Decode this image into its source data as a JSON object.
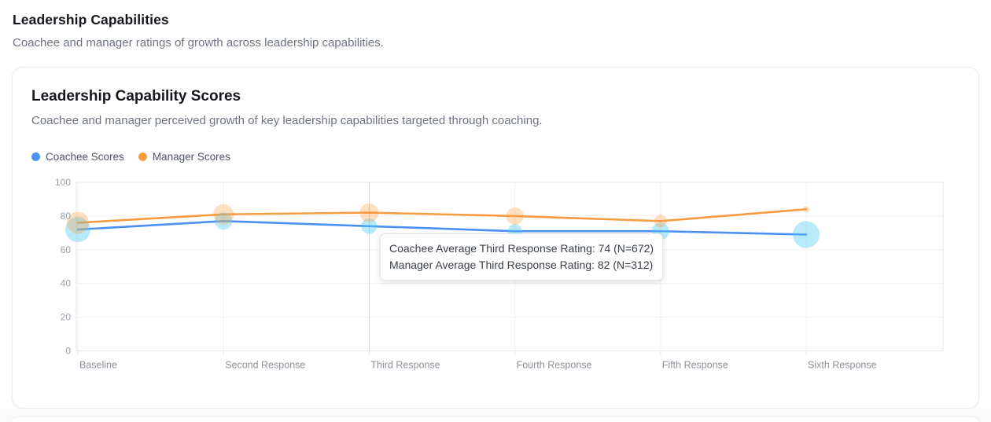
{
  "page": {
    "title": "Leadership Capabilities",
    "subtitle": "Coachee and manager ratings of growth across leadership capabilities."
  },
  "card": {
    "title": "Leadership Capability Scores",
    "subtitle": "Coachee and manager perceived growth of key leadership capabilities targeted through coaching."
  },
  "legend": [
    {
      "label": "Coachee Scores",
      "color": "#4B90F2"
    },
    {
      "label": "Manager Scores",
      "color": "#F89C42"
    }
  ],
  "tooltip": {
    "lines": [
      "Coachee Average Third Response Rating: 74 (N=672)",
      "Manager Average Third Response Rating: 82 (N=312)"
    ]
  },
  "chart_data": {
    "type": "line",
    "title": "Leadership Capability Scores",
    "categories": [
      "Baseline",
      "Second Response",
      "Third Response",
      "Fourth Response",
      "Fifth Response",
      "Sixth Response"
    ],
    "series": [
      {
        "name": "Coachee Scores",
        "values": [
          72,
          77,
          74,
          71,
          71,
          69
        ],
        "color": "#4B90F2",
        "bubble_color": "rgba(86,204,242,0.42)",
        "point_radii": [
          16,
          11,
          10,
          9,
          11,
          17
        ]
      },
      {
        "name": "Manager Scores",
        "values": [
          76,
          81,
          82,
          80,
          77,
          84
        ],
        "color": "#F89C42",
        "bubble_color": "rgba(248,157,66,0.33)",
        "point_radii": [
          14,
          13,
          12,
          11,
          8,
          4
        ]
      }
    ],
    "xlabel": "",
    "ylabel": "",
    "ylim": [
      0,
      100
    ],
    "yticks": [
      0,
      20,
      40,
      60,
      80,
      100
    ],
    "grid": true,
    "legend_position": "top-left",
    "hover_index": 2,
    "hovered_category": "Third Response"
  },
  "colors": {
    "grid": "#f0f0f1",
    "plot_border": "#e8e9eb",
    "hover_line": "#d3d5d9",
    "y_tick_text": "#9ba0a8",
    "x_tick_text": "#8d929b"
  }
}
